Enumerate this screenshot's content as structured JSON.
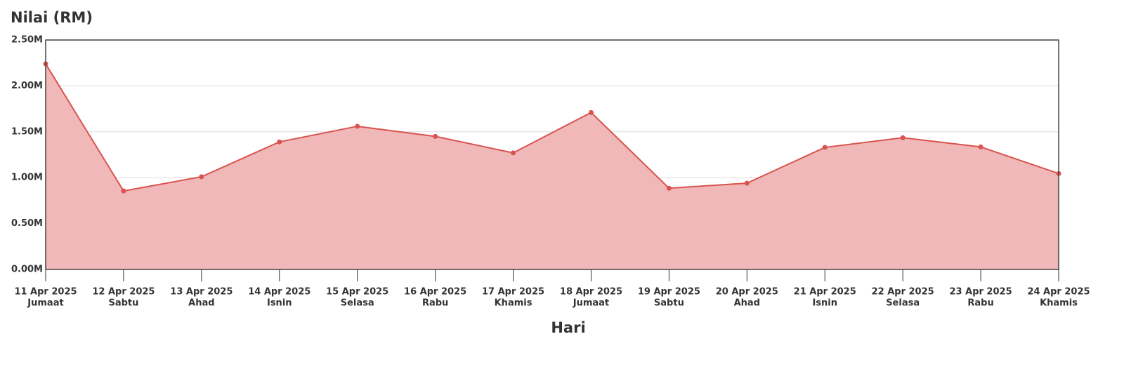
{
  "chart_data": {
    "type": "area",
    "title": "Nilai (RM)",
    "xlabel": "Hari",
    "categories": [
      "11 Apr 2025",
      "12 Apr 2025",
      "13 Apr 2025",
      "14 Apr 2025",
      "15 Apr 2025",
      "16 Apr 2025",
      "17 Apr 2025",
      "18 Apr 2025",
      "19 Apr 2025",
      "20 Apr 2025",
      "21 Apr 2025",
      "22 Apr 2025",
      "23 Apr 2025",
      "24 Apr 2025"
    ],
    "weekdays": [
      "Jumaat",
      "Sabtu",
      "Ahad",
      "Isnin",
      "Selasa",
      "Rabu",
      "Khamis",
      "Jumaat",
      "Sabtu",
      "Ahad",
      "Isnin",
      "Selasa",
      "Rabu",
      "Khamis"
    ],
    "values": [
      2240000,
      855000,
      1010000,
      1390000,
      1560000,
      1450000,
      1270000,
      1710000,
      885000,
      940000,
      1330000,
      1435000,
      1335000,
      1045000
    ],
    "color": "#d9534f",
    "fill_color": "#f0b8b8",
    "ylim": [
      0,
      2500000
    ],
    "yticks": [
      {
        "value": 0,
        "label": "0.00M"
      },
      {
        "value": 500000,
        "label": "0.50M"
      },
      {
        "value": 1000000,
        "label": "1.00M"
      },
      {
        "value": 1500000,
        "label": "1.50M"
      },
      {
        "value": 2000000,
        "label": "2.00M"
      },
      {
        "value": 2500000,
        "label": "2.50M"
      }
    ],
    "grid": true
  }
}
